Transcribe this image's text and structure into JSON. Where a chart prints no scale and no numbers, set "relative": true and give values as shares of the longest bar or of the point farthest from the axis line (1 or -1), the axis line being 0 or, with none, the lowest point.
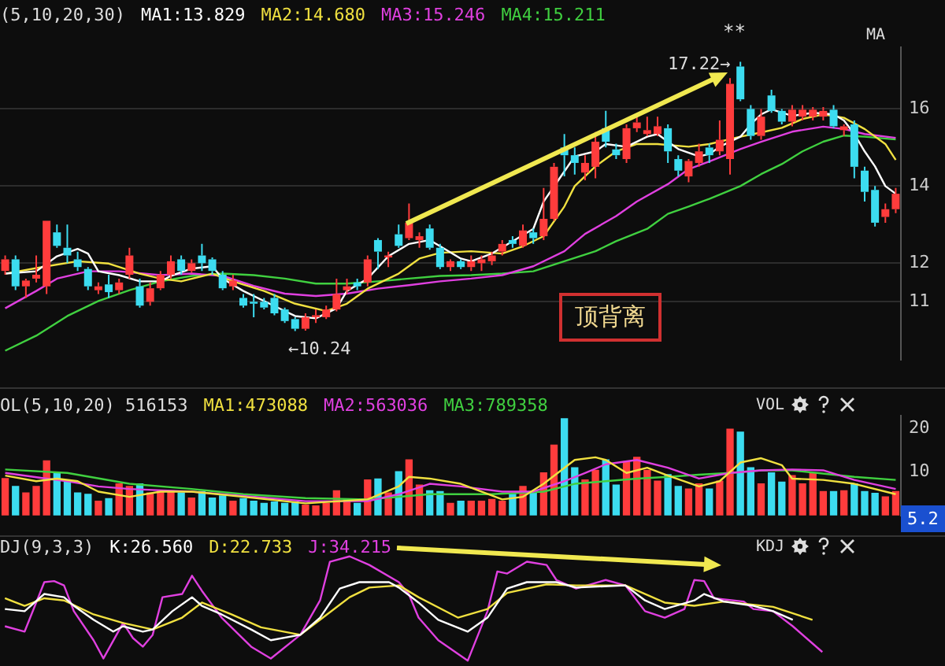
{
  "chart_data": [
    {
      "type": "candlestick",
      "title": "(5,10,20,30)",
      "grid": "y",
      "tick_labels": "y",
      "categories": [
        null,
        null,
        null,
        null,
        null,
        null,
        null,
        null,
        null,
        null,
        null,
        null,
        null,
        null,
        null,
        null,
        null,
        null,
        null,
        null,
        null,
        null,
        null,
        null,
        null,
        null,
        null,
        null,
        null,
        null,
        null,
        null,
        null,
        null,
        null,
        null,
        null,
        null,
        null,
        null,
        null,
        null,
        null,
        null,
        null,
        null,
        null,
        null,
        null,
        null,
        null,
        null,
        null,
        null,
        null,
        null,
        null,
        null,
        null,
        null,
        null,
        null,
        null,
        null,
        null,
        null,
        null,
        null,
        null,
        null,
        null,
        null,
        null,
        null,
        null,
        null,
        null,
        null,
        null,
        null,
        null,
        null,
        null,
        null,
        null,
        null,
        null
      ],
      "ohlc": [
        [
          11.8,
          12.2,
          11.7,
          12.1
        ],
        [
          12.1,
          12.2,
          11.3,
          11.4
        ],
        [
          11.4,
          11.6,
          11.1,
          11.55
        ],
        [
          11.6,
          12.2,
          11.5,
          11.7
        ],
        [
          11.4,
          13.1,
          11.2,
          13.1
        ],
        [
          12.8,
          13.0,
          12.4,
          12.45
        ],
        [
          12.4,
          13.0,
          12.0,
          12.2
        ],
        [
          12.1,
          12.3,
          11.8,
          11.9
        ],
        [
          11.85,
          11.9,
          11.3,
          11.4
        ],
        [
          11.3,
          11.5,
          11.2,
          11.4
        ],
        [
          11.45,
          11.7,
          11.1,
          11.25
        ],
        [
          11.3,
          11.6,
          11.2,
          11.5
        ],
        [
          11.7,
          12.4,
          11.6,
          12.2
        ],
        [
          11.4,
          11.6,
          10.85,
          10.9
        ],
        [
          11.0,
          11.5,
          10.9,
          11.35
        ],
        [
          11.35,
          11.8,
          11.3,
          11.7
        ],
        [
          11.7,
          12.2,
          11.6,
          12.05
        ],
        [
          12.1,
          12.2,
          11.7,
          11.8
        ],
        [
          11.8,
          12.1,
          11.75,
          12.0
        ],
        [
          12.2,
          12.5,
          11.8,
          12.0
        ],
        [
          12.1,
          12.15,
          11.7,
          11.8
        ],
        [
          11.7,
          11.8,
          11.3,
          11.35
        ],
        [
          11.4,
          11.7,
          11.3,
          11.55
        ],
        [
          11.1,
          11.2,
          10.85,
          10.9
        ],
        [
          11.0,
          11.2,
          10.6,
          10.95
        ],
        [
          11.0,
          11.1,
          10.8,
          10.85
        ],
        [
          11.1,
          11.2,
          10.65,
          10.7
        ],
        [
          10.8,
          10.85,
          10.45,
          10.5
        ],
        [
          10.55,
          10.6,
          10.24,
          10.3
        ],
        [
          10.3,
          10.7,
          10.25,
          10.6
        ],
        [
          10.6,
          10.8,
          10.45,
          10.65
        ],
        [
          10.6,
          10.9,
          10.55,
          10.8
        ],
        [
          10.8,
          11.6,
          10.75,
          11.2
        ],
        [
          11.3,
          11.6,
          11.2,
          11.4
        ],
        [
          11.5,
          11.6,
          11.3,
          11.4
        ],
        [
          11.5,
          12.2,
          11.4,
          12.1
        ],
        [
          12.6,
          12.65,
          11.85,
          12.3
        ],
        [
          12.15,
          12.3,
          11.9,
          12.2
        ],
        [
          12.75,
          13.0,
          12.4,
          12.45
        ],
        [
          12.65,
          13.55,
          12.6,
          13.05
        ],
        [
          12.6,
          12.8,
          12.4,
          12.7
        ],
        [
          12.9,
          13.0,
          12.35,
          12.4
        ],
        [
          12.4,
          12.5,
          11.85,
          11.9
        ],
        [
          11.9,
          12.1,
          11.8,
          12.05
        ],
        [
          12.05,
          12.1,
          11.85,
          11.9
        ],
        [
          11.9,
          12.2,
          11.8,
          12.05
        ],
        [
          12.0,
          12.2,
          11.8,
          12.1
        ],
        [
          12.05,
          12.3,
          11.95,
          12.2
        ],
        [
          12.3,
          12.6,
          12.2,
          12.5
        ],
        [
          12.6,
          12.7,
          12.4,
          12.5
        ],
        [
          12.45,
          13.0,
          12.4,
          12.85
        ],
        [
          12.8,
          12.9,
          12.5,
          12.65
        ],
        [
          12.7,
          13.95,
          12.6,
          13.15
        ],
        [
          13.15,
          14.6,
          13.1,
          14.5
        ],
        [
          15.0,
          15.35,
          14.25,
          14.8
        ],
        [
          14.8,
          15.0,
          14.3,
          14.6
        ],
        [
          14.35,
          14.8,
          14.15,
          14.6
        ],
        [
          14.5,
          15.4,
          14.2,
          15.15
        ],
        [
          15.5,
          15.95,
          15.0,
          15.15
        ],
        [
          14.95,
          15.1,
          14.7,
          14.8
        ],
        [
          14.7,
          15.6,
          14.6,
          15.5
        ],
        [
          15.5,
          15.8,
          15.4,
          15.65
        ],
        [
          15.35,
          15.8,
          15.3,
          15.45
        ],
        [
          15.35,
          15.8,
          15.3,
          15.55
        ],
        [
          15.5,
          15.6,
          14.6,
          14.9
        ],
        [
          14.7,
          14.8,
          14.25,
          14.4
        ],
        [
          14.25,
          14.7,
          14.1,
          14.65
        ],
        [
          14.6,
          15.1,
          14.5,
          14.9
        ],
        [
          15.0,
          15.1,
          14.6,
          14.8
        ],
        [
          14.9,
          15.7,
          14.8,
          15.2
        ],
        [
          14.7,
          16.8,
          14.3,
          16.65
        ],
        [
          17.1,
          17.22,
          16.2,
          16.25
        ],
        [
          16.0,
          16.1,
          15.2,
          15.3
        ],
        [
          15.3,
          16.0,
          15.2,
          15.8
        ],
        [
          16.35,
          16.5,
          15.9,
          15.95
        ],
        [
          15.95,
          16.0,
          15.6,
          15.67
        ],
        [
          15.67,
          16.1,
          15.55,
          15.98
        ],
        [
          15.8,
          16.1,
          15.7,
          15.98
        ],
        [
          15.8,
          16.05,
          15.7,
          15.98
        ],
        [
          15.8,
          16.05,
          15.7,
          15.95
        ],
        [
          15.98,
          16.1,
          15.5,
          15.55
        ],
        [
          15.45,
          15.6,
          15.3,
          15.55
        ],
        [
          15.6,
          15.7,
          14.2,
          14.5
        ],
        [
          14.4,
          14.5,
          13.6,
          13.85
        ],
        [
          13.9,
          14.0,
          12.95,
          13.05
        ],
        [
          13.2,
          13.55,
          13.05,
          13.4
        ],
        [
          13.4,
          13.95,
          13.3,
          13.8
        ]
      ],
      "colors": [
        "#ff3c3c",
        "#3cdcf0",
        "#ff3c3c",
        "#ff3c3c",
        "#ff3c3c",
        "#3cdcf0",
        "#3cdcf0",
        "#3cdcf0",
        "#3cdcf0",
        "#ff3c3c",
        "#3cdcf0",
        "#ff3c3c",
        "#ff3c3c",
        "#3cdcf0",
        "#ff3c3c",
        "#ff3c3c",
        "#ff3c3c",
        "#3cdcf0",
        "#ff3c3c",
        "#3cdcf0",
        "#3cdcf0",
        "#3cdcf0",
        "#ff3c3c",
        "#3cdcf0",
        "#3cdcf0",
        "#3cdcf0",
        "#3cdcf0",
        "#3cdcf0",
        "#3cdcf0",
        "#ff3c3c",
        "#ff3c3c",
        "#ff3c3c",
        "#ff3c3c",
        "#ff3c3c",
        "#3cdcf0",
        "#ff3c3c",
        "#3cdcf0",
        "#ff3c3c",
        "#3cdcf0",
        "#ff3c3c",
        "#ff3c3c",
        "#3cdcf0",
        "#3cdcf0",
        "#ff3c3c",
        "#3cdcf0",
        "#ff3c3c",
        "#ff3c3c",
        "#ff3c3c",
        "#ff3c3c",
        "#3cdcf0",
        "#ff3c3c",
        "#3cdcf0",
        "#ff3c3c",
        "#ff3c3c",
        "#3cdcf0",
        "#3cdcf0",
        "#ff3c3c",
        "#ff3c3c",
        "#3cdcf0",
        "#3cdcf0",
        "#ff3c3c",
        "#ff3c3c",
        "#ff3c3c",
        "#ff3c3c",
        "#3cdcf0",
        "#3cdcf0",
        "#ff3c3c",
        "#ff3c3c",
        "#3cdcf0",
        "#ff3c3c",
        "#ff3c3c",
        "#3cdcf0",
        "#3cdcf0",
        "#ff3c3c",
        "#3cdcf0",
        "#3cdcf0",
        "#ff3c3c",
        "#ff3c3c",
        "#ff3c3c",
        "#ff3c3c",
        "#3cdcf0",
        "#ff3c3c",
        "#3cdcf0",
        "#3cdcf0",
        "#3cdcf0",
        "#ff3c3c",
        "#ff3c3c"
      ],
      "ylim": [
        9.5,
        17.6
      ],
      "yticks": [
        16,
        14,
        12,
        11
      ],
      "series": [
        {
          "type": "line",
          "name": "MA1:13.829",
          "color": "#ffffff",
          "values": [
            11.73,
            null,
            null,
            11.79,
            null,
            12.18,
            null,
            12.37,
            12.25,
            11.79,
            null,
            11.69,
            null,
            11.53,
            null,
            11.53,
            11.67,
            null,
            11.86,
            null,
            11.92,
            11.6,
            null,
            11.28,
            null,
            null,
            10.89,
            null,
            10.63,
            null,
            10.57,
            null,
            10.83,
            11.28,
            null,
            11.6,
            null,
            12.18,
            null,
            12.5,
            null,
            12.6,
            12.44,
            null,
            12.12,
            12.05,
            null,
            12.25,
            null,
            12.57,
            null,
            12.89,
            13.6,
            null,
            14.38,
            14.77,
            null,
            14.9,
            15.09,
            null,
            15.02,
            null,
            15.28,
            15.35,
            15.15,
            14.96,
            null,
            14.77,
            14.83,
            15.02,
            null,
            15.28,
            15.6,
            15.86,
            15.99,
            null,
            15.82,
            null,
            15.9,
            null,
            15.86,
            15.7,
            15.35,
            14.9,
            14.51,
            14.0,
            13.8
          ]
        },
        {
          "type": "line",
          "name": "MA2:14.680",
          "color": "#f0e040",
          "values": [
            11.73,
            null,
            null,
            null,
            11.92,
            null,
            null,
            12.05,
            null,
            null,
            11.99,
            null,
            null,
            11.73,
            null,
            11.6,
            null,
            11.53,
            null,
            null,
            11.73,
            null,
            11.53,
            null,
            null,
            11.28,
            null,
            null,
            10.95,
            null,
            null,
            10.76,
            null,
            10.95,
            null,
            11.34,
            null,
            null,
            11.73,
            null,
            12.12,
            null,
            12.27,
            null,
            null,
            12.31,
            null,
            null,
            12.25,
            null,
            12.44,
            null,
            12.7,
            null,
            13.47,
            14.0,
            null,
            14.51,
            null,
            14.9,
            null,
            15.09,
            null,
            15.09,
            null,
            null,
            15.02,
            null,
            15.09,
            null,
            null,
            15.28,
            null,
            15.39,
            null,
            15.51,
            null,
            15.74,
            null,
            15.86,
            null,
            15.77,
            null,
            15.48,
            null,
            15.09,
            14.68
          ]
        },
        {
          "type": "line",
          "name": "MA3:15.246",
          "color": "#e040e0",
          "values": [
            10.83,
            null,
            null,
            11.28,
            null,
            11.6,
            null,
            null,
            11.79,
            null,
            null,
            11.79,
            null,
            null,
            null,
            11.69,
            null,
            null,
            11.73,
            null,
            null,
            11.67,
            null,
            null,
            11.41,
            null,
            null,
            11.21,
            null,
            null,
            11.15,
            null,
            null,
            11.21,
            null,
            null,
            11.34,
            null,
            null,
            11.43,
            null,
            null,
            11.53,
            null,
            null,
            11.6,
            null,
            null,
            11.69,
            null,
            null,
            11.92,
            null,
            null,
            12.31,
            null,
            12.76,
            null,
            null,
            13.22,
            null,
            13.6,
            null,
            null,
            14.05,
            null,
            14.44,
            null,
            14.64,
            null,
            null,
            14.96,
            null,
            15.15,
            null,
            null,
            15.41,
            null,
            null,
            15.54,
            null,
            15.48,
            null,
            15.35,
            null,
            null,
            15.25
          ]
        },
        {
          "type": "line",
          "name": "MA4:15.211",
          "color": "#40d040",
          "values": [
            9.73,
            null,
            null,
            10.12,
            null,
            null,
            10.63,
            null,
            null,
            11.02,
            null,
            null,
            11.3,
            null,
            null,
            11.53,
            null,
            null,
            11.67,
            null,
            null,
            11.73,
            null,
            null,
            11.69,
            null,
            null,
            11.6,
            null,
            null,
            11.47,
            null,
            null,
            11.47,
            null,
            null,
            11.53,
            null,
            null,
            11.6,
            null,
            null,
            11.67,
            null,
            null,
            11.69,
            null,
            null,
            11.73,
            null,
            null,
            11.79,
            null,
            null,
            12.05,
            null,
            null,
            12.31,
            null,
            12.57,
            null,
            null,
            12.89,
            null,
            13.28,
            null,
            13.47,
            null,
            13.67,
            null,
            null,
            14.0,
            null,
            14.31,
            null,
            14.57,
            null,
            14.9,
            null,
            15.15,
            null,
            15.31,
            null,
            15.28,
            null,
            null,
            15.21
          ]
        }
      ],
      "annotations": [
        "MA",
        "**",
        "顶背离",
        "17.22→",
        "←10.24"
      ]
    },
    {
      "type": "bar",
      "title": "OL(5,10,20) 516153",
      "tick_labels": "y",
      "categories": [
        null,
        null,
        null,
        null,
        null,
        null,
        null,
        null,
        null,
        null,
        null,
        null,
        null,
        null,
        null,
        null,
        null,
        null,
        null,
        null,
        null,
        null,
        null,
        null,
        null,
        null,
        null,
        null,
        null,
        null,
        null,
        null,
        null,
        null,
        null,
        null,
        null,
        null,
        null,
        null,
        null,
        null,
        null,
        null,
        null,
        null,
        null,
        null,
        null,
        null,
        null,
        null,
        null,
        null,
        null,
        null,
        null,
        null,
        null,
        null,
        null,
        null,
        null,
        null,
        null,
        null,
        null,
        null,
        null,
        null,
        null,
        null,
        null,
        null,
        null,
        null,
        null,
        null,
        null,
        null,
        null,
        null,
        null,
        null,
        null,
        null,
        null
      ],
      "values": [
        8.5,
        6.7,
        5.2,
        6.7,
        12.6,
        10.0,
        7.9,
        5.2,
        4.9,
        3.3,
        3.9,
        7.3,
        6.7,
        7.3,
        5.2,
        5.7,
        5.7,
        5.2,
        4.0,
        5.5,
        4.0,
        4.5,
        3.3,
        3.9,
        3.3,
        2.8,
        3.1,
        2.8,
        3.1,
        2.4,
        2.2,
        2.8,
        5.7,
        3.7,
        2.8,
        8.2,
        8.4,
        5.2,
        10.1,
        12.8,
        7.0,
        5.7,
        5.5,
        2.8,
        3.3,
        3.3,
        3.3,
        3.7,
        3.3,
        4.9,
        6.7,
        5.5,
        9.8,
        16.2,
        22.3,
        11.0,
        8.2,
        10.4,
        12.8,
        7.0,
        12.4,
        13.4,
        10.4,
        7.9,
        9.4,
        6.7,
        6.1,
        7.3,
        6.1,
        7.9,
        19.9,
        19.2,
        11.0,
        7.3,
        9.8,
        7.7,
        9.2,
        7.3,
        9.8,
        5.5,
        5.5,
        5.7,
        7.3,
        5.5,
        5.1,
        4.3,
        5.5
      ],
      "colors": [
        "#ff3c3c",
        "#3cdcf0",
        "#ff3c3c",
        "#ff3c3c",
        "#ff3c3c",
        "#3cdcf0",
        "#3cdcf0",
        "#3cdcf0",
        "#3cdcf0",
        "#ff3c3c",
        "#3cdcf0",
        "#ff3c3c",
        "#ff3c3c",
        "#3cdcf0",
        "#ff3c3c",
        "#ff3c3c",
        "#ff3c3c",
        "#3cdcf0",
        "#ff3c3c",
        "#3cdcf0",
        "#3cdcf0",
        "#3cdcf0",
        "#ff3c3c",
        "#3cdcf0",
        "#3cdcf0",
        "#3cdcf0",
        "#3cdcf0",
        "#3cdcf0",
        "#3cdcf0",
        "#ff3c3c",
        "#ff3c3c",
        "#ff3c3c",
        "#ff3c3c",
        "#ff3c3c",
        "#3cdcf0",
        "#ff3c3c",
        "#3cdcf0",
        "#ff3c3c",
        "#3cdcf0",
        "#ff3c3c",
        "#ff3c3c",
        "#3cdcf0",
        "#3cdcf0",
        "#ff3c3c",
        "#3cdcf0",
        "#ff3c3c",
        "#ff3c3c",
        "#ff3c3c",
        "#ff3c3c",
        "#3cdcf0",
        "#ff3c3c",
        "#3cdcf0",
        "#ff3c3c",
        "#ff3c3c",
        "#3cdcf0",
        "#3cdcf0",
        "#ff3c3c",
        "#ff3c3c",
        "#3cdcf0",
        "#3cdcf0",
        "#ff3c3c",
        "#ff3c3c",
        "#ff3c3c",
        "#ff3c3c",
        "#3cdcf0",
        "#3cdcf0",
        "#ff3c3c",
        "#ff3c3c",
        "#3cdcf0",
        "#ff3c3c",
        "#ff3c3c",
        "#3cdcf0",
        "#3cdcf0",
        "#ff3c3c",
        "#3cdcf0",
        "#3cdcf0",
        "#ff3c3c",
        "#ff3c3c",
        "#ff3c3c",
        "#ff3c3c",
        "#3cdcf0",
        "#ff3c3c",
        "#3cdcf0",
        "#3cdcf0",
        "#3cdcf0",
        "#ff3c3c",
        "#ff3c3c"
      ],
      "ylim": [
        0,
        23
      ],
      "yticks": [
        10,
        20
      ],
      "series": [
        {
          "type": "line",
          "name": "MA1:473088",
          "color": "#f0e040",
          "values": [
            9.2,
            null,
            null,
            7.9,
            null,
            8.5,
            null,
            7.9,
            null,
            5.5,
            null,
            null,
            4.3,
            null,
            null,
            5.5,
            null,
            null,
            5.5,
            null,
            null,
            null,
            null,
            4.3,
            null,
            null,
            null,
            null,
            null,
            2.8,
            null,
            null,
            null,
            null,
            null,
            3.7,
            null,
            null,
            6.7,
            8.9,
            null,
            8.5,
            null,
            null,
            7.3,
            null,
            null,
            null,
            3.7,
            null,
            4.3,
            null,
            7.3,
            null,
            null,
            12.8,
            null,
            13.4,
            12.8,
            null,
            9.8,
            null,
            11.0,
            null,
            9.2,
            null,
            null,
            6.7,
            null,
            7.9,
            null,
            12.2,
            null,
            13.2,
            null,
            11.6,
            8.5,
            null,
            null,
            8.2,
            null,
            null,
            7.3,
            null,
            null,
            null,
            4.9
          ]
        },
        {
          "type": "line",
          "name": "MA2:563036",
          "color": "#e040e0",
          "values": [
            9.8,
            null,
            null,
            null,
            8.5,
            null,
            7.9,
            null,
            null,
            6.7,
            null,
            null,
            6.1,
            null,
            null,
            null,
            null,
            null,
            5.5,
            null,
            null,
            null,
            null,
            4.5,
            null,
            null,
            null,
            null,
            null,
            3.3,
            null,
            null,
            null,
            null,
            null,
            3.3,
            null,
            null,
            4.9,
            null,
            null,
            7.3,
            null,
            null,
            6.7,
            null,
            null,
            null,
            5.5,
            null,
            null,
            5.5,
            null,
            null,
            7.9,
            null,
            9.8,
            null,
            11.8,
            null,
            null,
            12.8,
            null,
            null,
            11.0,
            null,
            null,
            8.5,
            null,
            null,
            9.8,
            null,
            null,
            10.4,
            null,
            null,
            10.6,
            null,
            null,
            10.4,
            null,
            null,
            8.2,
            null,
            null,
            null,
            6.1
          ]
        },
        {
          "type": "line",
          "name": "MA3:789358",
          "color": "#40d040",
          "values": [
            10.6,
            null,
            null,
            null,
            null,
            null,
            9.8,
            null,
            null,
            null,
            null,
            null,
            7.3,
            null,
            null,
            null,
            null,
            null,
            6.1,
            null,
            null,
            null,
            null,
            4.9,
            null,
            null,
            null,
            null,
            null,
            4.0,
            null,
            null,
            null,
            null,
            null,
            3.7,
            null,
            null,
            null,
            null,
            null,
            4.9,
            null,
            null,
            null,
            null,
            null,
            4.9,
            null,
            null,
            null,
            null,
            5.5,
            null,
            null,
            7.3,
            null,
            null,
            7.9,
            null,
            null,
            8.5,
            null,
            null,
            8.9,
            null,
            null,
            9.4,
            null,
            null,
            9.8,
            null,
            null,
            10.4,
            null,
            null,
            10.4,
            null,
            null,
            null,
            null,
            null,
            8.9,
            null,
            null,
            null,
            8.2
          ]
        }
      ],
      "annotations": [
        "VOL",
        "5.2"
      ]
    },
    {
      "type": "line",
      "title": "DJ(9,3,3)",
      "relative": true,
      "tick_labels": false,
      "categories": [
        null,
        null,
        null,
        null,
        null,
        null,
        null,
        null,
        null,
        null,
        null,
        null,
        null,
        null,
        null,
        null,
        null,
        null,
        null,
        null,
        null,
        null,
        null,
        null,
        null,
        null,
        null,
        null,
        null,
        null,
        null,
        null,
        null,
        null,
        null,
        null,
        null,
        null,
        null,
        null,
        null,
        null,
        null,
        null,
        null,
        null,
        null,
        null,
        null,
        null,
        null,
        null,
        null,
        null,
        null,
        null,
        null,
        null,
        null,
        null,
        null,
        null,
        null,
        null,
        null,
        null,
        null,
        null,
        null,
        null,
        null,
        null,
        null,
        null,
        null,
        null,
        null,
        null,
        null,
        null,
        null,
        null,
        null,
        null,
        null,
        null,
        null
      ],
      "series": [
        {
          "name": "K:26.560",
          "color": "#ffffff",
          "values": [
            0.51,
            null,
            0.49,
            null,
            0.65,
            null,
            0.62,
            0.54,
            null,
            0.41,
            null,
            0.3,
            0.35,
            null,
            0.3,
            0.32,
            null,
            0.49,
            null,
            0.62,
            0.54,
            null,
            0.46,
            null,
            null,
            0.32,
            null,
            0.22,
            null,
            null,
            0.27,
            null,
            0.43,
            null,
            0.7,
            null,
            0.76,
            null,
            null,
            0.76,
            0.71,
            null,
            0.57,
            null,
            0.41,
            null,
            null,
            0.3,
            null,
            0.43,
            null,
            0.7,
            null,
            0.76,
            null,
            null,
            0.76,
            null,
            0.71,
            null,
            null,
            null,
            null,
            0.73,
            null,
            0.59,
            null,
            0.51,
            null,
            null,
            0.59,
            0.65,
            null,
            0.58,
            null,
            null,
            0.54,
            null,
            0.49,
            null,
            0.41,
            null,
            null,
            null,
            null,
            null,
            null
          ]
        },
        {
          "name": "D:22.733",
          "color": "#f0e040",
          "values": [
            0.61,
            null,
            0.54,
            null,
            0.61,
            null,
            0.59,
            null,
            null,
            0.46,
            null,
            null,
            0.38,
            null,
            null,
            0.32,
            null,
            null,
            0.43,
            null,
            0.57,
            null,
            null,
            0.46,
            null,
            null,
            0.34,
            null,
            null,
            null,
            0.27,
            null,
            0.41,
            null,
            null,
            0.62,
            null,
            0.71,
            null,
            null,
            0.73,
            null,
            0.62,
            null,
            null,
            null,
            0.43,
            null,
            null,
            0.51,
            null,
            0.66,
            null,
            null,
            null,
            0.74,
            null,
            null,
            0.73,
            null,
            null,
            null,
            null,
            0.73,
            null,
            null,
            null,
            0.57,
            null,
            null,
            0.54,
            null,
            null,
            0.58,
            null,
            null,
            null,
            null,
            0.53,
            null,
            null,
            null,
            0.41,
            null,
            null,
            null,
            null
          ]
        },
        {
          "name": "J:34.215",
          "color": "#e040e0",
          "values": [
            0.35,
            null,
            0.3,
            null,
            0.76,
            0.77,
            0.73,
            0.49,
            null,
            0.22,
            0.05,
            null,
            0.38,
            0.24,
            0.16,
            0.27,
            0.62,
            null,
            0.65,
            0.82,
            0.68,
            null,
            0.43,
            null,
            null,
            0.16,
            null,
            0.05,
            null,
            null,
            0.27,
            null,
            0.59,
            0.95,
            null,
            1,
            null,
            0.92,
            null,
            null,
            0.76,
            0.65,
            0.43,
            null,
            0.22,
            null,
            null,
            0.03,
            null,
            0.49,
            0.86,
            0.84,
            null,
            0.95,
            null,
            0.92,
            0.78,
            null,
            0.7,
            null,
            null,
            0.78,
            null,
            0.73,
            null,
            0.49,
            null,
            0.43,
            null,
            0.51,
            0.78,
            0.77,
            0.61,
            null,
            null,
            0.58,
            0.51,
            null,
            0.49,
            null,
            0.35,
            null,
            null,
            0.11,
            null,
            null,
            null
          ]
        }
      ],
      "annotations": [
        "KDJ"
      ]
    }
  ]
}
